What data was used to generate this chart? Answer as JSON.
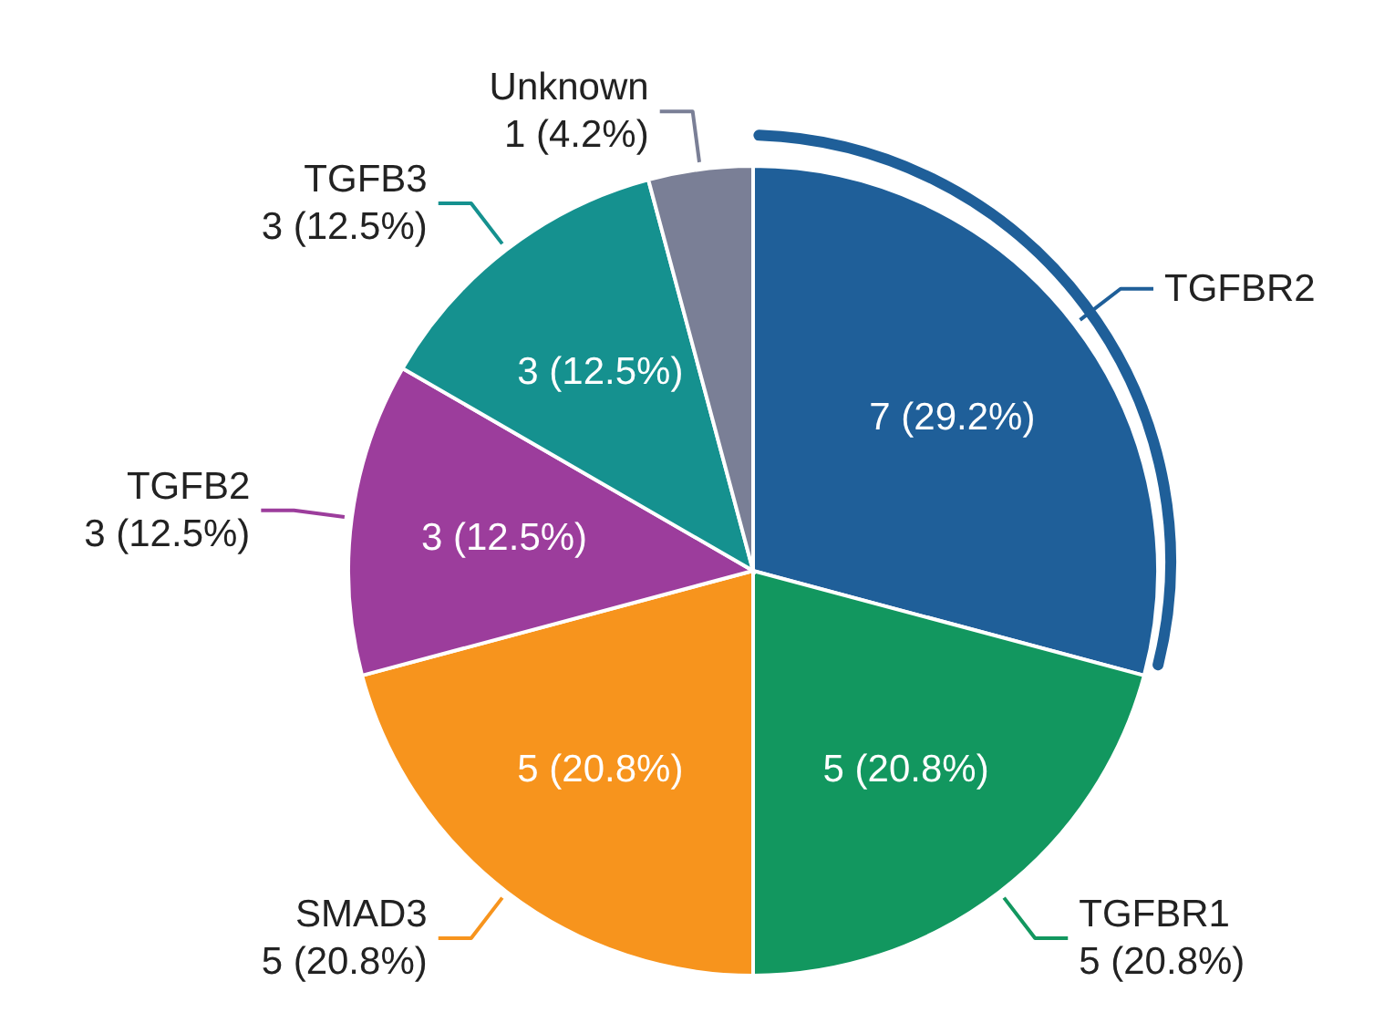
{
  "chart_data": {
    "type": "pie",
    "categories": [
      "TGFBR2",
      "TGFBR1\n5 (20.8%)",
      "SMAD3\n5 (20.8%)",
      "TGFB2\n3 (12.5%)",
      "TGFB3\n3 (12.5%)",
      "Unknown\n1 (4.2%)"
    ],
    "values": [
      7,
      5,
      5,
      3,
      3,
      1
    ],
    "colors": [
      "#1f5f99",
      "#12975f",
      "#f7941d",
      "#9c3d9c",
      "#15918f",
      "#7a7f96"
    ],
    "value_labels": [
      "7 (29.2%)",
      "5 (20.8%)",
      "5 (20.8%)",
      "3 (12.5%)",
      "3 (12.5%)",
      null
    ]
  }
}
